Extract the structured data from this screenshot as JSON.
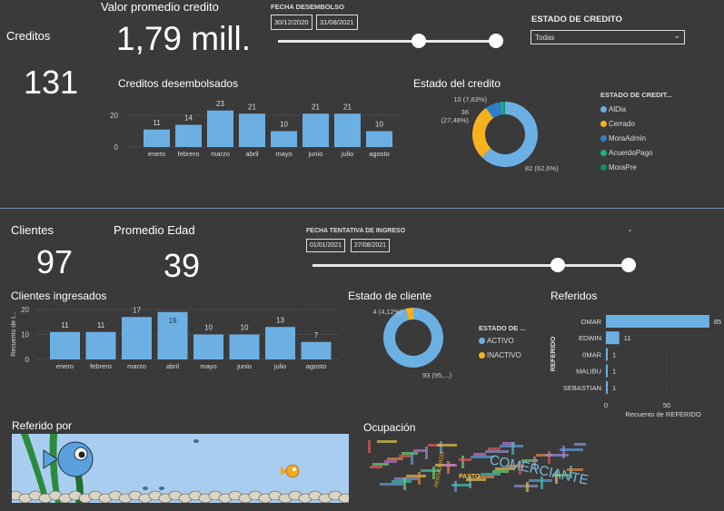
{
  "kpis": {
    "creditos_label": "Creditos",
    "creditos_value": "131",
    "valor_label": "Valor promedio credito",
    "valor_value": "1,79 mill.",
    "clientes_label": "Clientes",
    "clientes_value": "97",
    "edad_label": "Promedio Edad",
    "edad_value": "39"
  },
  "filters": {
    "fecha_desembolso": {
      "label": "FECHA DESEMBOLSO",
      "start": "30/12/2020",
      "end": "31/08/2021"
    },
    "estado_credito": {
      "label": "ESTADO DE CREDITO",
      "selected": "Todas"
    },
    "fecha_ingreso": {
      "label": "FECHA TENTATIVA DE INGRESO",
      "start": "01/01/2021",
      "end": "27/08/2021"
    }
  },
  "colors": {
    "bar": "#6cb0e3",
    "background": "#3a3a3a",
    "cerrado": "#f5b21e",
    "moraadmin": "#2f7fc8",
    "acuerdopago": "#1fb08a",
    "morapre": "#168a6e"
  },
  "chart_data": [
    {
      "id": "creditos_desembolsados",
      "type": "bar",
      "title": "Creditos desembolsados",
      "categories": [
        "enero",
        "febrero",
        "marzo",
        "abril",
        "mayo",
        "junio",
        "julio",
        "agosto"
      ],
      "values": [
        11,
        14,
        23,
        21,
        10,
        21,
        21,
        10
      ],
      "yticks": [
        0,
        20
      ],
      "ylabel": "",
      "grid": true
    },
    {
      "id": "estado_credito",
      "type": "pie",
      "title": "Estado del credito",
      "legend_title": "ESTADO DE CREDIT...",
      "legend": "right",
      "slices": [
        {
          "name": "AlDia",
          "value": 82,
          "label": "82 (62,6%)",
          "color": "#6cb0e3"
        },
        {
          "name": "Cerrado",
          "value": 36,
          "label": "36 (27,48%)",
          "color": "#f5b21e"
        },
        {
          "name": "MoraAdmin",
          "value": 10,
          "label": "10 (7,63%)",
          "color": "#2f7fc8"
        },
        {
          "name": "AcuerdoPago",
          "value": 2,
          "color": "#1fb08a"
        },
        {
          "name": "MoraPre",
          "value": 1,
          "color": "#168a6e"
        }
      ]
    },
    {
      "id": "clientes_ingresados",
      "type": "bar",
      "title": "Clientes ingresados",
      "categories": [
        "enero",
        "febrero",
        "marzo",
        "abril",
        "mayo",
        "junio",
        "julio",
        "agosto"
      ],
      "values": [
        11,
        11,
        17,
        19,
        10,
        10,
        13,
        7
      ],
      "yticks": [
        0,
        10,
        20
      ],
      "ylabel": "Recuento de I...",
      "grid": true
    },
    {
      "id": "estado_cliente",
      "type": "pie",
      "title": "Estado de cliente",
      "legend_title": "ESTADO DE ...",
      "legend": "right",
      "slices": [
        {
          "name": "ACTIVO",
          "value": 93,
          "label": "93 (95,...)",
          "color": "#6cb0e3"
        },
        {
          "name": "INACTIVO",
          "value": 4,
          "label": "4 (4,12%)",
          "color": "#f5b21e"
        }
      ]
    },
    {
      "id": "referidos",
      "type": "bar",
      "orientation": "horizontal",
      "title": "Referidos",
      "categories": [
        "OMAR",
        "EDWIN",
        "0MAR",
        "MALIBU",
        "SEBASTIAN"
      ],
      "values": [
        85,
        11,
        1,
        1,
        1
      ],
      "xticks": [
        0,
        50
      ],
      "xlabel": "Recuento de REFERIDO",
      "ylabel": "REFERIDO"
    }
  ],
  "visuals": {
    "referido_por_title": "Referido por",
    "ocupacion_title": "Ocupación",
    "wordcloud_main_word": "COMERCIANTE",
    "wordcloud_words": [
      "PASTO",
      "PENSIONADO"
    ]
  }
}
